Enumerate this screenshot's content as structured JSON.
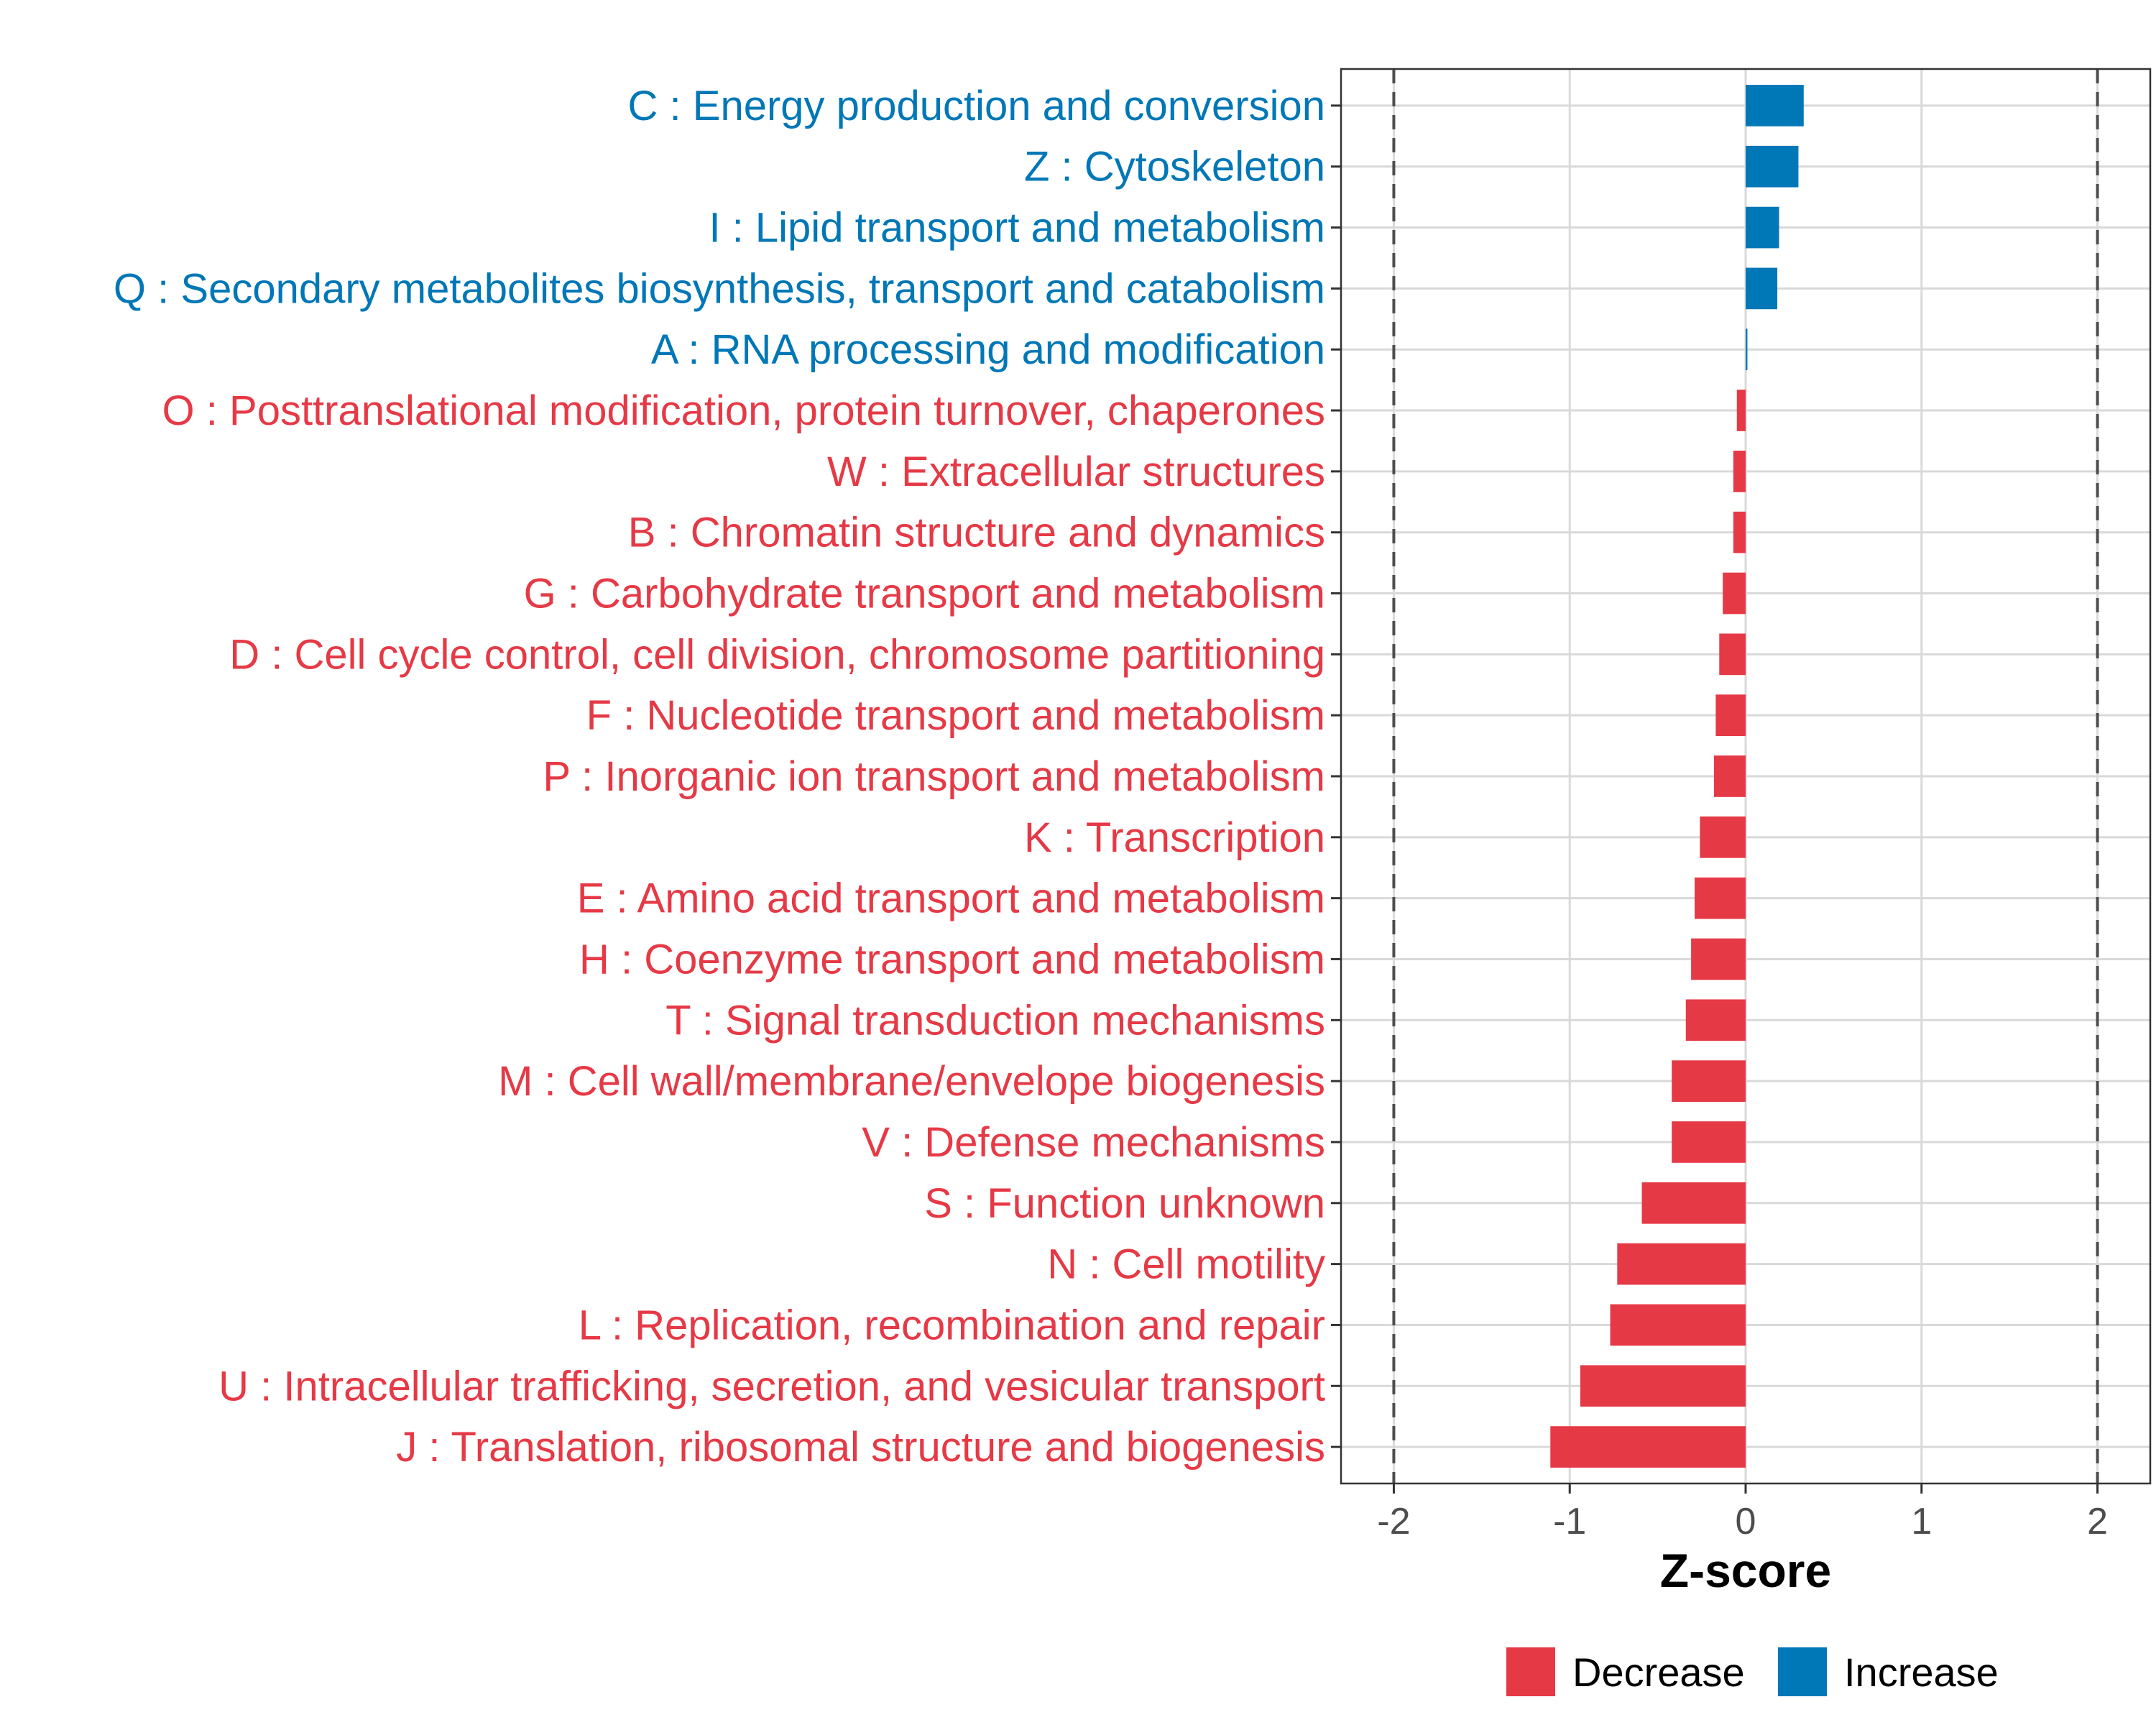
{
  "chart_data": {
    "type": "bar",
    "orientation": "horizontal",
    "xlabel": "Z-score",
    "xlim": [
      -2.3,
      2.3
    ],
    "x_ticks": [
      -2,
      -1,
      0,
      1,
      2
    ],
    "x_tick_labels": [
      "-2",
      "-1",
      "0",
      "1",
      "2"
    ],
    "reference_lines": [
      -2,
      2
    ],
    "grid": true,
    "legend": {
      "placement": "bottom",
      "entries": [
        {
          "name": "Decrease",
          "color": "#e63946"
        },
        {
          "name": "Increase",
          "color": "#0077b6"
        }
      ]
    },
    "categories": [
      "C : Energy production and conversion",
      "Z : Cytoskeleton",
      "I : Lipid transport and metabolism",
      "Q : Secondary metabolites biosynthesis, transport and catabolism",
      "A : RNA processing and modification",
      "O : Posttranslational modification, protein turnover, chaperones",
      "W : Extracellular structures",
      "B : Chromatin structure and dynamics",
      "G : Carbohydrate transport and metabolism",
      "D : Cell cycle control, cell division, chromosome partitioning",
      "F : Nucleotide transport and metabolism",
      "P : Inorganic ion transport and metabolism",
      "K : Transcription",
      "E : Amino acid transport and metabolism",
      "H : Coenzyme transport and metabolism",
      "T : Signal transduction mechanisms",
      "M : Cell wall/membrane/envelope biogenesis",
      "V : Defense mechanisms",
      "S : Function unknown",
      "N : Cell motility",
      "L : Replication, recombination and repair",
      "U : Intracellular trafficking, secretion, and vesicular transport",
      "J : Translation, ribosomal structure and biogenesis"
    ],
    "values": [
      0.33,
      0.3,
      0.19,
      0.18,
      0.01,
      -0.05,
      -0.07,
      -0.07,
      -0.13,
      -0.15,
      -0.17,
      -0.18,
      -0.26,
      -0.29,
      -0.31,
      -0.34,
      -0.42,
      -0.42,
      -0.59,
      -0.73,
      -0.77,
      -0.94,
      -1.11
    ],
    "groups": [
      "Increase",
      "Increase",
      "Increase",
      "Increase",
      "Increase",
      "Decrease",
      "Decrease",
      "Decrease",
      "Decrease",
      "Decrease",
      "Decrease",
      "Decrease",
      "Decrease",
      "Decrease",
      "Decrease",
      "Decrease",
      "Decrease",
      "Decrease",
      "Decrease",
      "Decrease",
      "Decrease",
      "Decrease",
      "Decrease"
    ]
  }
}
